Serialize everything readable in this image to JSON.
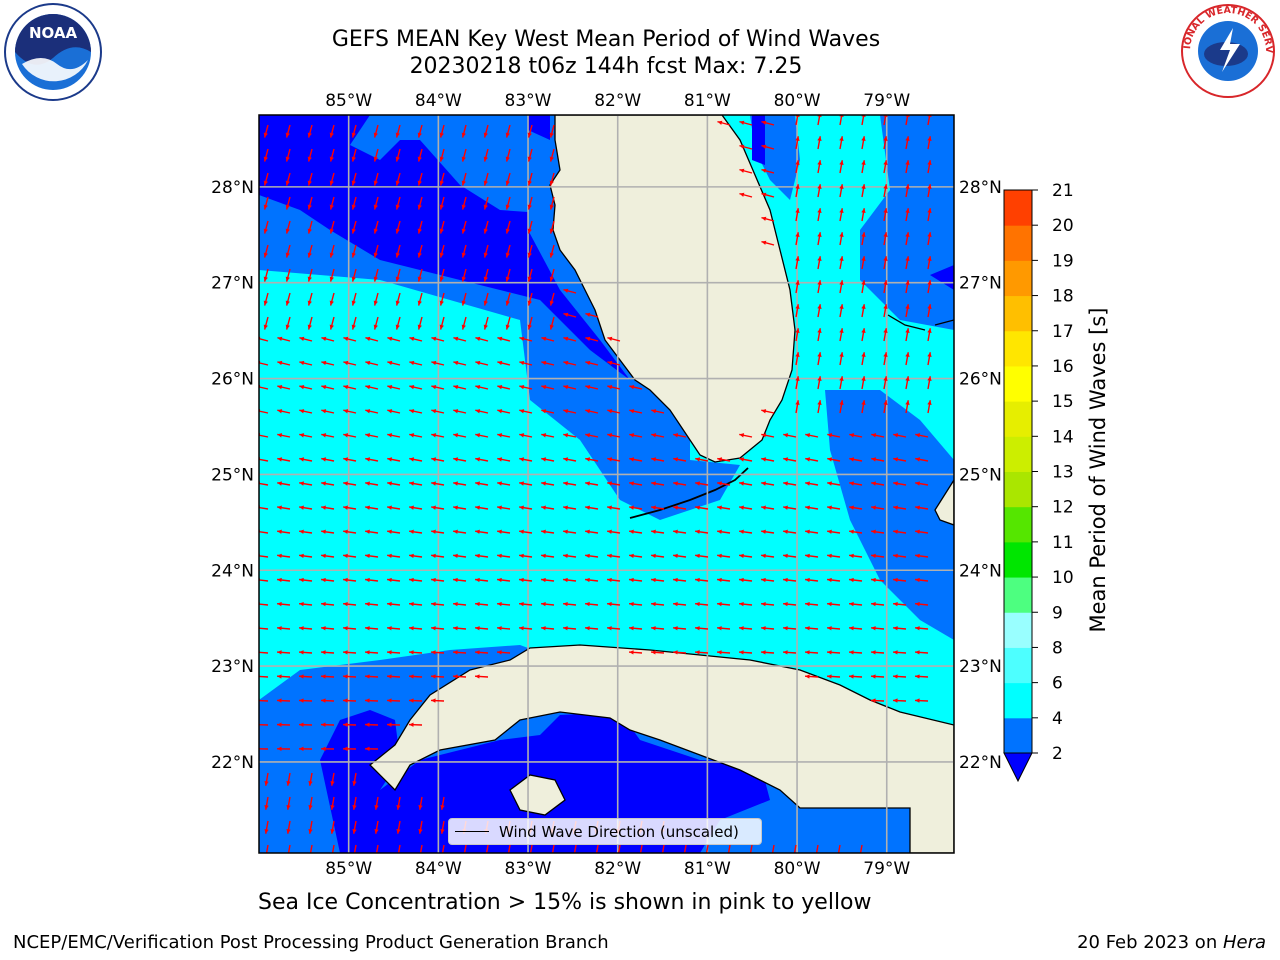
{
  "title_line1": "GEFS MEAN Key West Mean Period of Wind Waves",
  "title_line2": "20230218 t06z 144h fcst   Max: 7.25",
  "subtitle": "Sea Ice Concentration > 15% is shown in pink to yellow",
  "footer_left": "NCEP/EMC/Verification Post Processing Product Generation Branch",
  "footer_date": "20 Feb 2023 on ",
  "footer_host": "Hera",
  "legend_label": "Wind Wave Direction (unscaled)",
  "logos": {
    "noaa_text": "NOAA",
    "nws_text": "NATIONAL WEATHER SERVICE"
  },
  "map": {
    "lon_ticks": [
      "85°W",
      "84°W",
      "83°W",
      "82°W",
      "81°W",
      "80°W",
      "79°W"
    ],
    "lat_ticks": [
      "28°N",
      "27°N",
      "26°N",
      "25°N",
      "24°N",
      "23°N",
      "22°N"
    ],
    "lon_values": [
      -85,
      -84,
      -83,
      -82,
      -81,
      -80,
      -79
    ],
    "lat_values": [
      28,
      27,
      26,
      25,
      24,
      23,
      22
    ],
    "lon_range": [
      -86,
      -78.25
    ],
    "lat_range": [
      21.05,
      28.75
    ],
    "colors": {
      "land": "#efefdc",
      "band_2_4": "#0073ff",
      "band_4_6": "#00ffff",
      "below_2": "#0000ff",
      "arrow": "#ff0000",
      "grid": "#b0b0b0"
    }
  },
  "colorbar": {
    "label": "Mean Period of Wind Waves [s]",
    "ticks": [
      "2",
      "4",
      "6",
      "8",
      "9",
      "10",
      "11",
      "12",
      "13",
      "14",
      "15",
      "16",
      "17",
      "18",
      "19",
      "20",
      "21"
    ],
    "colors": [
      "#0073ff",
      "#00ffff",
      "#4dffff",
      "#99ffff",
      "#4dff80",
      "#00e600",
      "#55e600",
      "#aae600",
      "#ccee00",
      "#e6ee00",
      "#ffff00",
      "#ffe600",
      "#ffbf00",
      "#ff9900",
      "#ff7300",
      "#ff4000",
      "#ff0000"
    ],
    "extend_min_color": "#0000ff"
  }
}
